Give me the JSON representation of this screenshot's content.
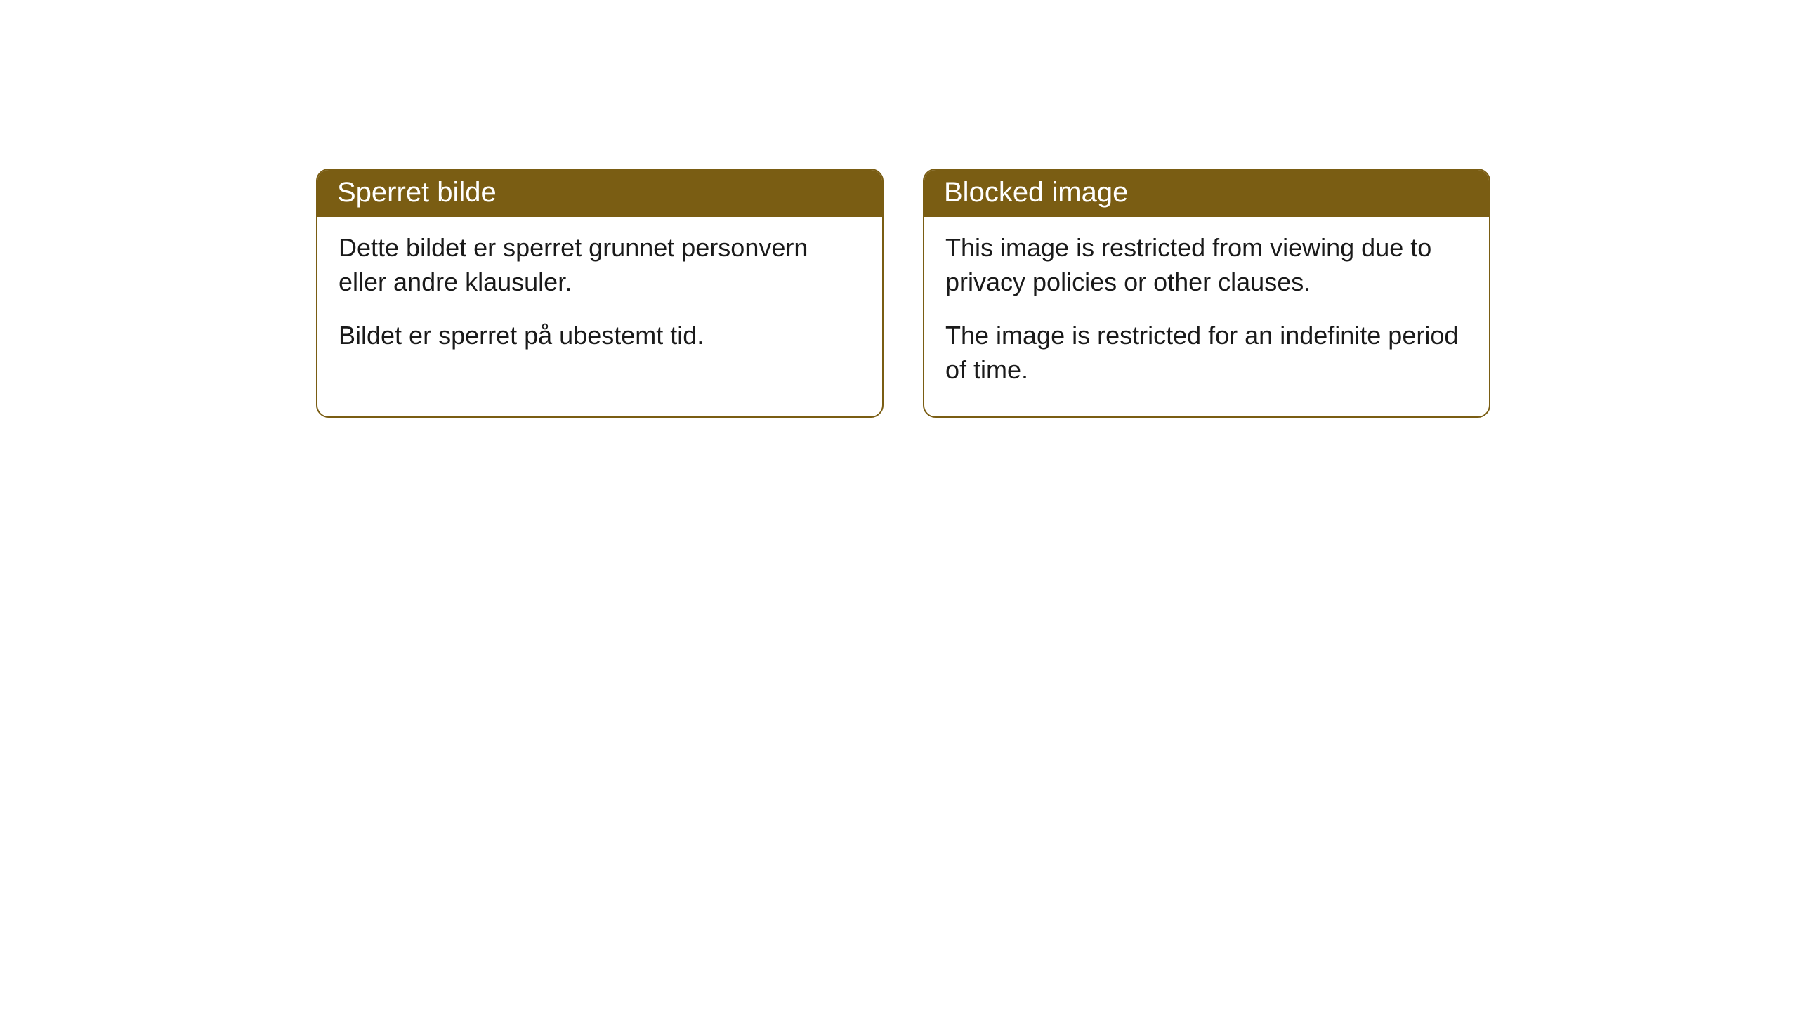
{
  "cards": [
    {
      "title": "Sperret bilde",
      "paragraph1": "Dette bildet er sperret grunnet personvern eller andre klausuler.",
      "paragraph2": "Bildet er sperret på ubestemt tid."
    },
    {
      "title": "Blocked image",
      "paragraph1": "This image is restricted from viewing due to privacy policies or other clauses.",
      "paragraph2": "The image is restricted for an indefinite period of time."
    }
  ],
  "style": {
    "header_bg_color": "#7a5d13",
    "header_text_color": "#ffffff",
    "border_color": "#7a5d13",
    "body_text_color": "#1a1a1a",
    "background_color": "#ffffff",
    "border_radius": 18,
    "header_fontsize": 40,
    "body_fontsize": 36
  }
}
